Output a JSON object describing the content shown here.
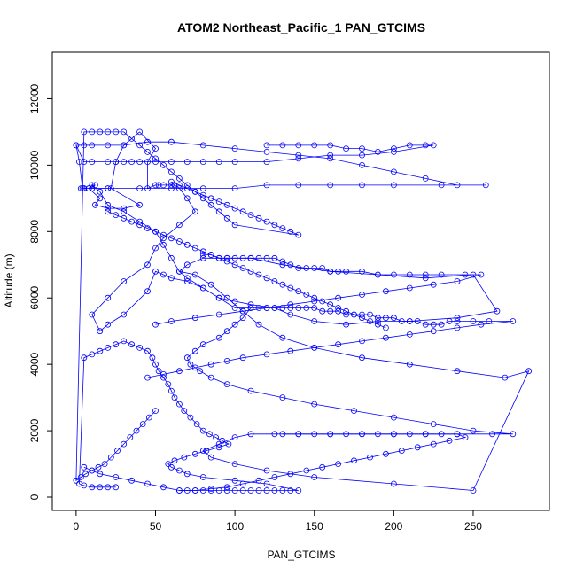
{
  "chart_data": {
    "type": "scatter",
    "title": "ATOM2 Northeast_Pacific_1 PAN_GTCIMS",
    "xlabel": "PAN_GTCIMS",
    "ylabel": "Altitude (m)",
    "xlim": [
      -15,
      298
    ],
    "ylim": [
      -400,
      13400
    ],
    "x_ticks": [
      0,
      50,
      100,
      150,
      200,
      250
    ],
    "y_ticks": [
      0,
      2000,
      4000,
      6000,
      8000,
      10000,
      12000
    ],
    "grid": false,
    "legend": "none",
    "series_color": "#0000ff",
    "marker": "open-circle",
    "series": [
      {
        "x": [
          0,
          2,
          4,
          8,
          15,
          12,
          20,
          30,
          40,
          22,
          25,
          30,
          40,
          50,
          45,
          45,
          50,
          52,
          55,
          60,
          62,
          65,
          70,
          75,
          65,
          55,
          50,
          45,
          30,
          20,
          10,
          15,
          20,
          30,
          45,
          50,
          55,
          60,
          70,
          80,
          90,
          100,
          110,
          105,
          100,
          95,
          90,
          80,
          75,
          70,
          72,
          78,
          85,
          95,
          110,
          130,
          150,
          175,
          200,
          225,
          250,
          275,
          262,
          240,
          220,
          200,
          180,
          160,
          140,
          125,
          110,
          100,
          90,
          80,
          85,
          100,
          120,
          150,
          200,
          250,
          285,
          270,
          240,
          210,
          180,
          150,
          130,
          115,
          105,
          95,
          85,
          75,
          65,
          70,
          80,
          95,
          110,
          130,
          160,
          190,
          220,
          250,
          265,
          240,
          210,
          190,
          170,
          150,
          135,
          125,
          110,
          100,
          90,
          80,
          70,
          65,
          60,
          55,
          50,
          40,
          30,
          20,
          15,
          10,
          12,
          8,
          5,
          3,
          5,
          10,
          20
        ],
        "y": [
          10600,
          10100,
          9300,
          9300,
          9000,
          8800,
          8700,
          8700,
          8800,
          9300,
          10100,
          10600,
          11000,
          10500,
          10100,
          9300,
          9400,
          9400,
          9400,
          9400,
          9400,
          9300,
          9000,
          8600,
          8200,
          7800,
          7500,
          7000,
          6500,
          6000,
          5500,
          5000,
          5200,
          5500,
          6200,
          6800,
          6700,
          6600,
          6500,
          6300,
          6000,
          5700,
          5700,
          5400,
          5200,
          5000,
          4800,
          4600,
          4400,
          4200,
          4000,
          3800,
          3600,
          3400,
          3200,
          3000,
          2800,
          2600,
          2400,
          2200,
          2000,
          1900,
          1900,
          1900,
          1900,
          1900,
          1900,
          1900,
          1900,
          1900,
          1900,
          1800,
          1600,
          1400,
          1200,
          1000,
          800,
          600,
          400,
          200,
          3800,
          3600,
          3800,
          4000,
          4200,
          4500,
          4800,
          5200,
          5600,
          6000,
          6400,
          6700,
          6800,
          7000,
          7200,
          7200,
          7200,
          7000,
          6800,
          6700,
          6600,
          6700,
          5600,
          5400,
          5300,
          5300,
          5200,
          5300,
          5500,
          5700,
          5800,
          5900,
          6000,
          6300,
          6600,
          6800,
          7200,
          7600,
          8000,
          8300,
          8600,
          8800,
          9200,
          9400,
          9400,
          9300,
          9300,
          9300,
          9300,
          9300,
          9300
        ]
      },
      {
        "x": [
          120,
          130,
          140,
          150,
          160,
          170,
          180,
          190,
          200,
          210,
          220,
          225,
          200,
          180,
          160,
          140,
          120,
          100,
          90,
          80,
          70,
          60,
          50,
          40,
          35,
          30,
          25,
          20,
          10,
          5,
          0,
          5,
          10,
          20,
          30,
          45,
          60,
          80,
          100,
          120,
          140,
          160,
          180,
          200,
          220,
          240,
          258,
          230,
          200,
          180,
          160,
          140,
          120,
          100,
          80,
          60,
          40,
          20,
          10,
          5
        ],
        "y": [
          10600,
          10600,
          10600,
          10600,
          10600,
          10500,
          10500,
          10400,
          10500,
          10600,
          10600,
          10600,
          10400,
          10300,
          10300,
          10200,
          10100,
          10100,
          10100,
          10100,
          10100,
          10100,
          10100,
          10100,
          10100,
          10100,
          10100,
          10100,
          10100,
          10100,
          10600,
          10600,
          10600,
          10600,
          10600,
          10700,
          10700,
          10600,
          10500,
          10400,
          10300,
          10200,
          10000,
          9800,
          9600,
          9400,
          9400,
          9400,
          9400,
          9400,
          9400,
          9400,
          9400,
          9300,
          9300,
          9300,
          9300,
          9300,
          9300,
          9300
        ]
      },
      {
        "x": [
          65,
          70,
          75,
          80,
          85,
          90,
          95,
          100,
          105,
          110,
          115,
          120,
          125,
          130,
          135,
          140,
          120,
          100,
          80,
          70,
          65,
          60,
          58,
          62,
          68,
          75,
          82,
          90,
          96,
          92,
          88,
          84,
          80,
          76,
          72,
          68,
          65,
          62,
          60,
          58,
          55,
          52,
          50,
          48,
          45,
          40,
          35,
          30,
          25,
          20,
          15,
          10,
          5,
          2,
          5,
          10,
          15,
          20,
          25
        ],
        "y": [
          200,
          200,
          200,
          200,
          200,
          200,
          200,
          200,
          200,
          200,
          200,
          200,
          200,
          200,
          200,
          200,
          400,
          500,
          600,
          700,
          800,
          900,
          1000,
          1100,
          1200,
          1300,
          1400,
          1500,
          1600,
          1700,
          1800,
          1900,
          2000,
          2200,
          2400,
          2600,
          2800,
          3000,
          3200,
          3400,
          3600,
          3800,
          4000,
          4200,
          4400,
          4500,
          4600,
          4700,
          4600,
          4500,
          4400,
          4300,
          4200,
          400,
          350,
          300,
          300,
          300,
          300
        ]
      },
      {
        "x": [
          130,
          140,
          150,
          160,
          170,
          180,
          190,
          200,
          210,
          220,
          230,
          240,
          245,
          235,
          225,
          215,
          205,
          195,
          185,
          175,
          165,
          155,
          145,
          135,
          125,
          115,
          105,
          95,
          85,
          75,
          65,
          55,
          45,
          35,
          25,
          15,
          10,
          5
        ],
        "y": [
          1900,
          1900,
          1900,
          1900,
          1900,
          1900,
          1900,
          1900,
          1900,
          1900,
          1900,
          1900,
          1800,
          1700,
          1600,
          1500,
          1400,
          1300,
          1200,
          1100,
          1000,
          900,
          800,
          700,
          600,
          500,
          400,
          300,
          250,
          200,
          200,
          300,
          400,
          500,
          600,
          700,
          800,
          900
        ]
      },
      {
        "x": [
          110,
          115,
          120,
          125,
          130,
          135,
          140,
          145,
          150,
          155,
          160,
          165,
          170,
          175,
          180,
          185,
          190,
          195,
          200,
          205,
          210,
          215,
          220,
          225,
          230,
          235,
          240,
          250,
          260,
          275,
          255,
          240,
          225,
          210,
          195,
          180,
          165,
          150,
          135,
          120,
          105,
          95,
          85,
          75,
          65,
          55,
          45
        ],
        "y": [
          5700,
          5700,
          5700,
          5700,
          5700,
          5700,
          5700,
          5700,
          5700,
          5600,
          5600,
          5600,
          5500,
          5500,
          5500,
          5500,
          5400,
          5400,
          5400,
          5300,
          5300,
          5300,
          5200,
          5200,
          5200,
          5300,
          5300,
          5300,
          5300,
          5300,
          5200,
          5100,
          5000,
          4900,
          4800,
          4700,
          4600,
          4500,
          4400,
          4300,
          4200,
          4100,
          4000,
          3900,
          3800,
          3700,
          3600
        ]
      },
      {
        "x": [
          80,
          85,
          90,
          95,
          100,
          105,
          110,
          115,
          120,
          125,
          130,
          135,
          140,
          145,
          150,
          155,
          160,
          165,
          170,
          180,
          190,
          200,
          210,
          220,
          230,
          245,
          255,
          240,
          225,
          210,
          195,
          180,
          165,
          150,
          135,
          120,
          105,
          90,
          75,
          60,
          50
        ],
        "y": [
          7300,
          7300,
          7200,
          7200,
          7200,
          7200,
          7200,
          7200,
          7200,
          7200,
          7100,
          7000,
          6900,
          6900,
          6900,
          6900,
          6800,
          6800,
          6800,
          6800,
          6700,
          6700,
          6700,
          6700,
          6700,
          6700,
          6700,
          6500,
          6400,
          6300,
          6200,
          6100,
          6000,
          5900,
          5800,
          5700,
          5600,
          5500,
          5400,
          5300,
          5200
        ]
      },
      {
        "x": [
          60,
          65,
          70,
          75,
          80,
          85,
          90,
          95,
          100,
          105,
          110,
          115,
          120,
          125,
          130,
          135,
          140,
          100,
          95,
          90,
          85,
          80,
          75,
          70,
          65,
          60,
          55,
          50,
          45,
          40,
          35,
          30,
          25,
          20,
          15,
          10,
          5,
          0,
          3,
          6,
          10,
          14,
          18,
          22,
          26,
          30,
          34,
          38,
          42,
          46,
          50
        ],
        "y": [
          9500,
          9400,
          9300,
          9200,
          9100,
          9000,
          8900,
          8800,
          8700,
          8600,
          8500,
          8400,
          8300,
          8200,
          8100,
          8000,
          7900,
          8200,
          8400,
          8600,
          8800,
          9000,
          9200,
          9400,
          9600,
          9800,
          10000,
          10200,
          10400,
          10600,
          10800,
          11000,
          11000,
          11000,
          11000,
          11000,
          11000,
          500,
          600,
          700,
          800,
          900,
          1000,
          1200,
          1400,
          1600,
          1800,
          2000,
          2200,
          2400,
          2600
        ]
      },
      {
        "x": [
          20,
          25,
          30,
          35,
          40,
          45,
          50,
          55,
          60,
          65,
          70,
          75,
          80,
          85,
          90,
          95,
          100,
          105,
          110,
          115,
          120,
          125,
          130,
          135,
          140,
          145,
          150,
          155,
          160,
          165,
          170,
          175,
          180,
          185,
          190,
          195
        ],
        "y": [
          8600,
          8500,
          8400,
          8300,
          8200,
          8100,
          8000,
          7900,
          7800,
          7700,
          7600,
          7500,
          7400,
          7300,
          7200,
          7100,
          7000,
          6900,
          6800,
          6700,
          6600,
          6500,
          6400,
          6300,
          6200,
          6100,
          6000,
          5900,
          5800,
          5700,
          5600,
          5500,
          5400,
          5300,
          5200,
          5100
        ]
      }
    ]
  }
}
